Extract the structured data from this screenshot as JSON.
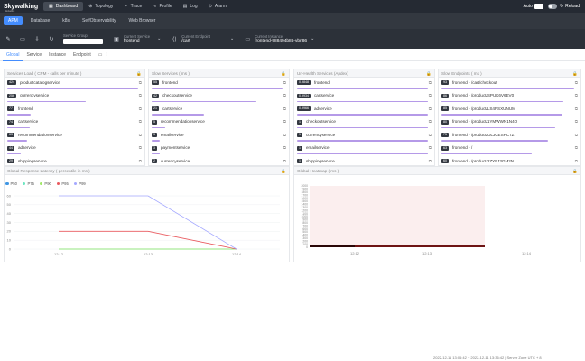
{
  "app": {
    "logo": "Skywalking",
    "logo_sub": "Rocketbot"
  },
  "nav": [
    {
      "label": "Dashboard",
      "icon": "▦",
      "active": true
    },
    {
      "label": "Topology",
      "icon": "⊛",
      "active": false
    },
    {
      "label": "Trace",
      "icon": "↗",
      "active": false
    },
    {
      "label": "Profile",
      "icon": "∿",
      "active": false
    },
    {
      "label": "Log",
      "icon": "▤",
      "active": false
    },
    {
      "label": "Alarm",
      "icon": "⊙",
      "active": false
    }
  ],
  "topright": {
    "auto": "Auto",
    "reload": "Reload",
    "reload_icon": "↻"
  },
  "tabs": [
    "APM",
    "Database",
    "k8s",
    "SelfObservability",
    "Web Browser"
  ],
  "filters": {
    "service_group": {
      "label": "Service Group",
      "value": ""
    },
    "current_service": {
      "label": "Current Service",
      "value": "frontend"
    },
    "current_endpoint": {
      "label": "Current Endpoint",
      "value": "/cart"
    },
    "current_instance": {
      "label": "Current Instance",
      "value": "frontend-988494b86-vbn86"
    }
  },
  "subtabs": [
    "Global",
    "Service",
    "Instance",
    "Endpoint"
  ],
  "panels": {
    "load": {
      "title": "Services Load ( CPM - calls per minute )",
      "rows": [
        {
          "badge": "424",
          "name": "productcatalogservice",
          "pct": 1.0
        },
        {
          "badge": "256",
          "name": "currencyservice",
          "pct": 0.6
        },
        {
          "badge": "77",
          "name": "frontend",
          "pct": 0.18
        },
        {
          "badge": "74",
          "name": "cartservice",
          "pct": 0.17
        },
        {
          "badge": "63",
          "name": "recommendationservice",
          "pct": 0.15
        },
        {
          "badge": "44",
          "name": "adservice",
          "pct": 0.1
        },
        {
          "badge": "29",
          "name": "shippingservice",
          "pct": 0.07
        }
      ]
    },
    "slow": {
      "title": "Slow Services ( ms )",
      "rows": [
        {
          "badge": "55",
          "name": "frontend",
          "pct": 1.0
        },
        {
          "badge": "42",
          "name": "checkoutservice",
          "pct": 0.8
        },
        {
          "badge": "21",
          "name": "cartservice",
          "pct": 0.4
        },
        {
          "badge": "5",
          "name": "recommendationservice",
          "pct": 0.1
        },
        {
          "badge": "3",
          "name": "emailservice",
          "pct": 0.06
        },
        {
          "badge": "3",
          "name": "paymentservice",
          "pct": 0.06
        },
        {
          "badge": "2",
          "name": "currencyservice",
          "pct": 0.04
        }
      ]
    },
    "unhealthy": {
      "title": "Un-Health Services (Apdex)",
      "rows": [
        {
          "badge": "0.9848",
          "name": "frontend",
          "pct": 1.0
        },
        {
          "badge": "0.9934",
          "name": "cartservice",
          "pct": 1.0
        },
        {
          "badge": "0.9966",
          "name": "adservice",
          "pct": 1.0
        },
        {
          "badge": "1",
          "name": "checkoutservice",
          "pct": 1.0
        },
        {
          "badge": "1",
          "name": "currencyservice",
          "pct": 1.0
        },
        {
          "badge": "1",
          "name": "emailservice",
          "pct": 1.0
        },
        {
          "badge": "1",
          "name": "shippingservice",
          "pct": 1.0
        }
      ]
    },
    "endpoints": {
      "title": "Slow Endpoints ( ms )",
      "rows": [
        {
          "badge": "93",
          "name": "frontend - /cart/checkout",
          "pct": 1.0
        },
        {
          "badge": "86",
          "name": "frontend - /product/SPUK6V6EV0",
          "pct": 0.92
        },
        {
          "badge": "85",
          "name": "frontend - /product/LS4PSXUNUM",
          "pct": 0.91
        },
        {
          "badge": "80",
          "name": "frontend - /product/1YMWWN1N4O",
          "pct": 0.86
        },
        {
          "badge": "75",
          "name": "frontend - /product/OLJCESPC7Z",
          "pct": 0.8
        },
        {
          "badge": "63",
          "name": "frontend - /",
          "pct": 0.68
        },
        {
          "badge": "60",
          "name": "frontend - /product/2ZYFJ3GM2N",
          "pct": 0.64
        }
      ]
    }
  },
  "latency": {
    "title": "Global Response Latency ( percentile in ms )",
    "legend": [
      {
        "name": "P50",
        "color": "#3f96e3"
      },
      {
        "name": "P75",
        "color": "#6be6c1"
      },
      {
        "name": "P90",
        "color": "#a0e866"
      },
      {
        "name": "P95",
        "color": "#e9595e"
      },
      {
        "name": "P99",
        "color": "#a4a8ff"
      }
    ]
  },
  "heatmap": {
    "title": "Global Heatmap ( ms )"
  },
  "footer": "2022-12-11 13:06:42 ~ 2022-12-11 13:36:42  |  Server Zone UTC + 8",
  "chart_data": [
    {
      "type": "line",
      "x": [
        "12:12",
        "12:13",
        "12:14"
      ],
      "ylim": [
        0,
        60
      ],
      "yticks": [
        0,
        10,
        20,
        30,
        40,
        50,
        60
      ],
      "series": [
        {
          "name": "P50",
          "values": [
            0,
            0,
            0
          ]
        },
        {
          "name": "P75",
          "values": [
            0,
            0,
            0
          ]
        },
        {
          "name": "P90",
          "values": [
            0,
            0,
            0
          ]
        },
        {
          "name": "P95",
          "values": [
            20,
            20,
            0
          ]
        },
        {
          "name": "P99",
          "values": [
            60,
            60,
            0
          ]
        }
      ]
    },
    {
      "type": "heatmap",
      "x": [
        "12:12",
        "12:13",
        "12:14"
      ],
      "yticks": [
        0,
        100,
        200,
        300,
        400,
        500,
        600,
        700,
        800,
        900,
        1000,
        1100,
        1200,
        1300,
        1400,
        1500,
        1600,
        1700,
        1800,
        1900,
        2000
      ]
    }
  ]
}
